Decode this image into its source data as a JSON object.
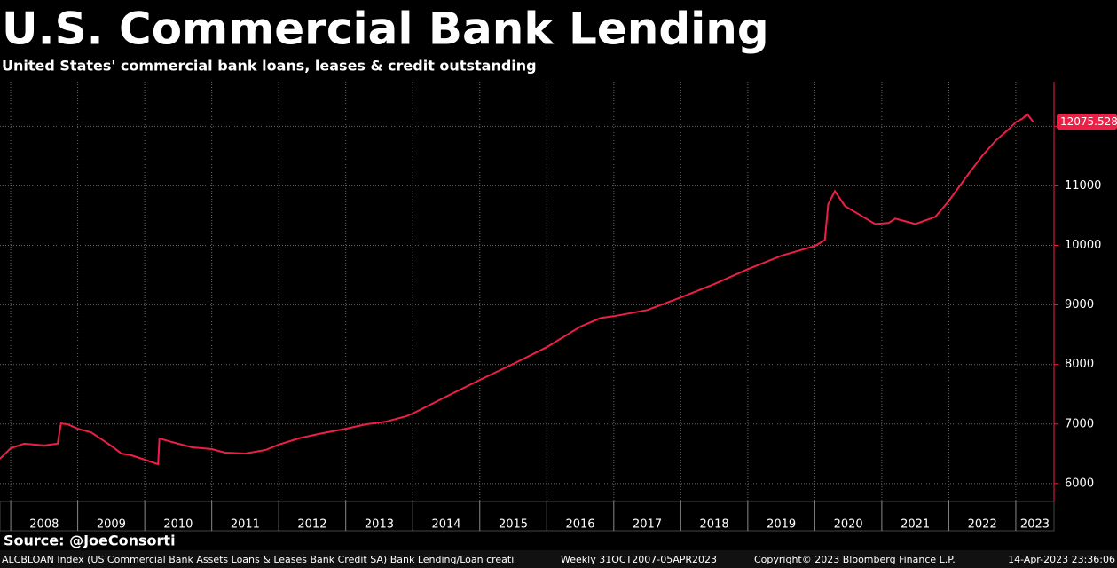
{
  "chart_data": {
    "type": "line",
    "title": "U.S. Commercial Bank Lending",
    "subtitle": "United States' commercial bank loans, leases & credit outstanding",
    "source": "Source: @JoeConsorti",
    "footer": {
      "index": "ALCBLOAN Index (US Commercial Bank Assets Loans & Leases Bank Credit SA) Bank Lending/Loan creati",
      "range": "Weekly 31OCT2007-05APR2023",
      "copyright": "Copyright© 2023 Bloomberg Finance L.P.",
      "timestamp": "14-Apr-2023 23:36:06"
    },
    "x": [
      2007.84,
      2008.0,
      2008.2,
      2008.5,
      2008.7,
      2008.75,
      2008.85,
      2009.0,
      2009.2,
      2009.4,
      2009.55,
      2009.65,
      2009.8,
      2010.0,
      2010.2,
      2010.22,
      2010.4,
      2010.7,
      2011.0,
      2011.2,
      2011.5,
      2011.8,
      2012.0,
      2012.3,
      2012.6,
      2013.0,
      2013.3,
      2013.6,
      2013.9,
      2014.0,
      2014.5,
      2015.0,
      2015.5,
      2016.0,
      2016.5,
      2016.8,
      2017.0,
      2017.5,
      2018.0,
      2018.5,
      2019.0,
      2019.5,
      2020.0,
      2020.15,
      2020.2,
      2020.3,
      2020.45,
      2020.7,
      2020.9,
      2021.1,
      2021.2,
      2021.5,
      2021.8,
      2022.0,
      2022.3,
      2022.5,
      2022.7,
      2022.9,
      2023.0,
      2023.1,
      2023.17,
      2023.26
    ],
    "series": [
      {
        "name": "ALCBLOAN Index",
        "color": "#ee1f47",
        "values": [
          6417,
          6595,
          6670,
          6640,
          6670,
          7010,
          6995,
          6920,
          6860,
          6710,
          6595,
          6505,
          6475,
          6400,
          6325,
          6760,
          6700,
          6610,
          6580,
          6520,
          6505,
          6565,
          6655,
          6760,
          6835,
          6920,
          6995,
          7040,
          7130,
          7175,
          7460,
          7740,
          8010,
          8290,
          8635,
          8780,
          8810,
          8915,
          9125,
          9350,
          9600,
          9825,
          9990,
          10090,
          10690,
          10910,
          10660,
          10495,
          10360,
          10375,
          10450,
          10360,
          10480,
          10745,
          11210,
          11505,
          11760,
          11955,
          12070,
          12130,
          12205,
          12075.528
        ]
      }
    ],
    "xlim": [
      2007.84,
      2023.57
    ],
    "xticks": [
      2008,
      2009,
      2010,
      2011,
      2012,
      2013,
      2014,
      2015,
      2016,
      2017,
      2018,
      2019,
      2020,
      2021,
      2022,
      2023
    ],
    "ylim": [
      5700,
      12750
    ],
    "yticks": [
      6000,
      7000,
      8000,
      9000,
      10000,
      11000,
      12000
    ],
    "grid": true
  }
}
